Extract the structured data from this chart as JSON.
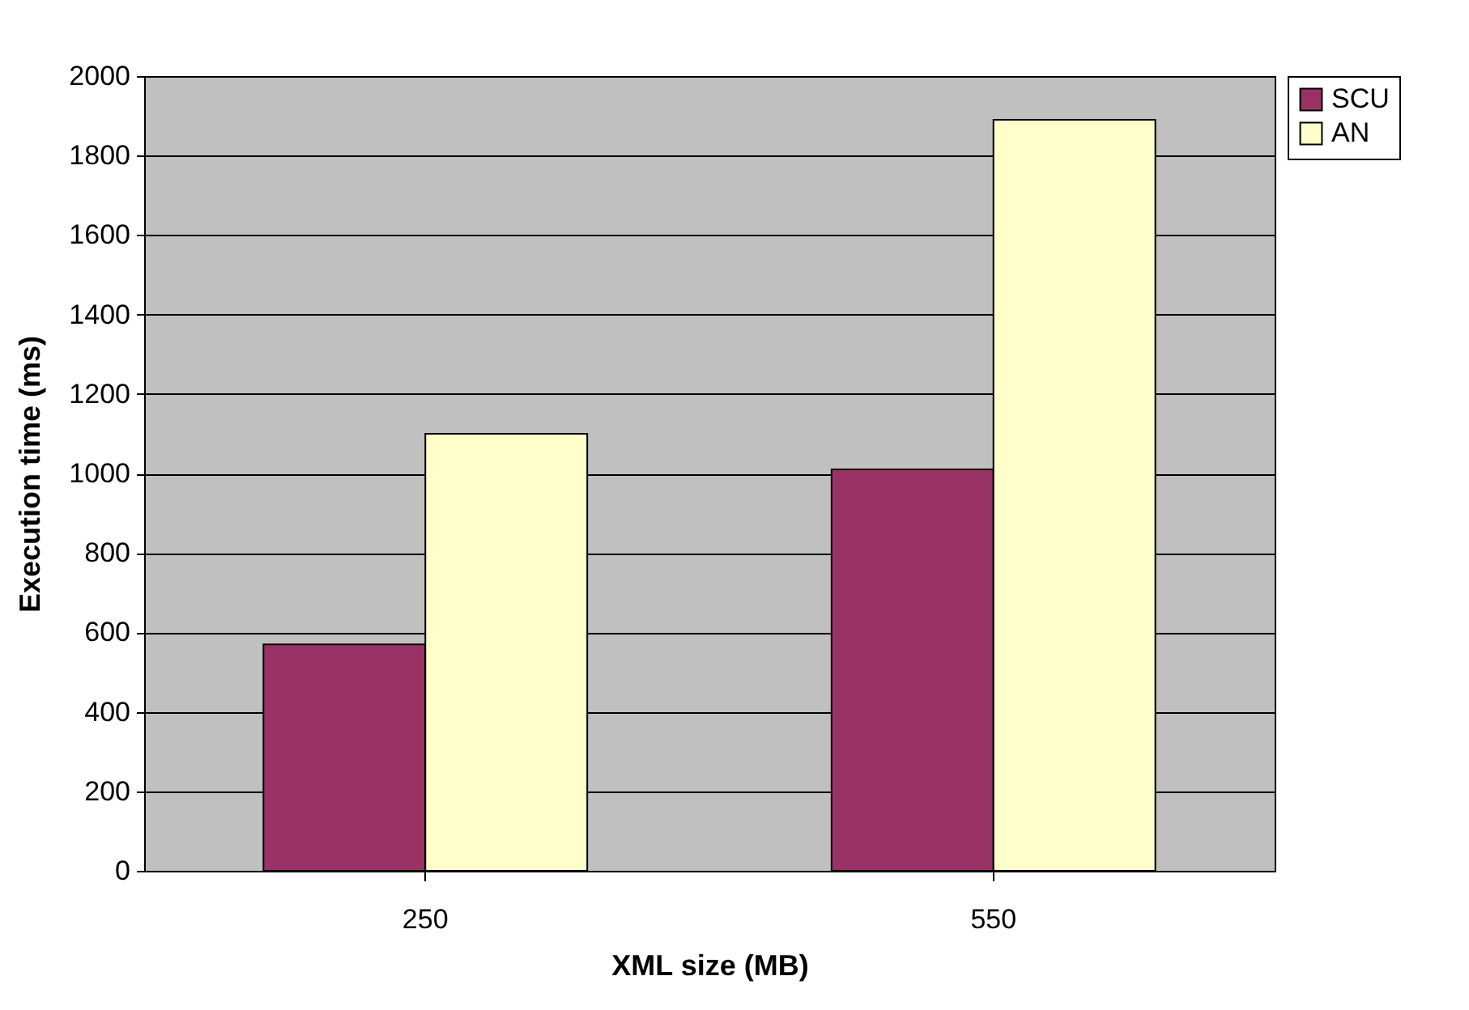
{
  "chart_data": {
    "type": "bar",
    "xlabel": "XML size (MB)",
    "ylabel": "Execution time (ms)",
    "categories": [
      "250",
      "550"
    ],
    "series": [
      {
        "name": "SCU",
        "color": "#993366",
        "values": [
          570,
          1010
        ]
      },
      {
        "name": "AN",
        "color": "#ffffcc",
        "values": [
          1100,
          1890
        ]
      }
    ],
    "ylim": [
      0,
      2000
    ],
    "yticks": [
      0,
      200,
      400,
      600,
      800,
      1000,
      1200,
      1400,
      1600,
      1800,
      2000
    ],
    "grid": "y",
    "legend": "right"
  }
}
